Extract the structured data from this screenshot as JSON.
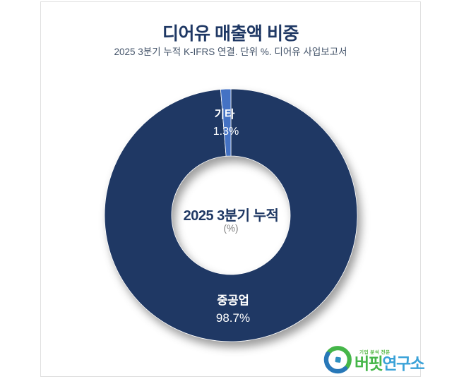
{
  "header": {
    "title": "디어유 매출액 비중",
    "subtitle": "2025 3분기 누적 K-IFRS 연결. 단위 %. 디어유 사업보고서"
  },
  "chart_data": {
    "type": "pie",
    "subtype": "donut",
    "title": "디어유 매출액 비중",
    "subtitle": "2025 3분기 누적 K-IFRS 연결. 단위 %. 디어유 사업보고서",
    "unit": "%",
    "categories": [
      "중공업",
      "기타"
    ],
    "values": [
      98.7,
      1.3
    ],
    "series": [
      {
        "name": "중공업",
        "value": 98.7,
        "pct_label": "98.7%",
        "color": "#1f3864"
      },
      {
        "name": "기타",
        "value": 1.3,
        "pct_label": "1.3%",
        "color": "#4472c4"
      }
    ],
    "start_angle_deg": 0,
    "direction": "clockwise",
    "inner_radius_ratio": 0.47,
    "center_label": "2025 3분기 누적",
    "center_sublabel": "(%)",
    "data_label_color": "#ffffff",
    "legend_position": "none"
  },
  "colors": {
    "title": "#1f3864",
    "subtitle": "#44546a",
    "center_label": "#1f3864",
    "center_sublabel": "#7f7f7f",
    "card_border": "#e0e0e0",
    "background": "#ffffff",
    "shadow": "rgba(40,40,40,0.45)"
  },
  "logo": {
    "tagline": "기업 분석 전문",
    "name_green": "버핏",
    "name_blue": "연구소",
    "green": "#45b649",
    "blue": "#3aa2d8",
    "icon_blue": "#2878b8"
  }
}
